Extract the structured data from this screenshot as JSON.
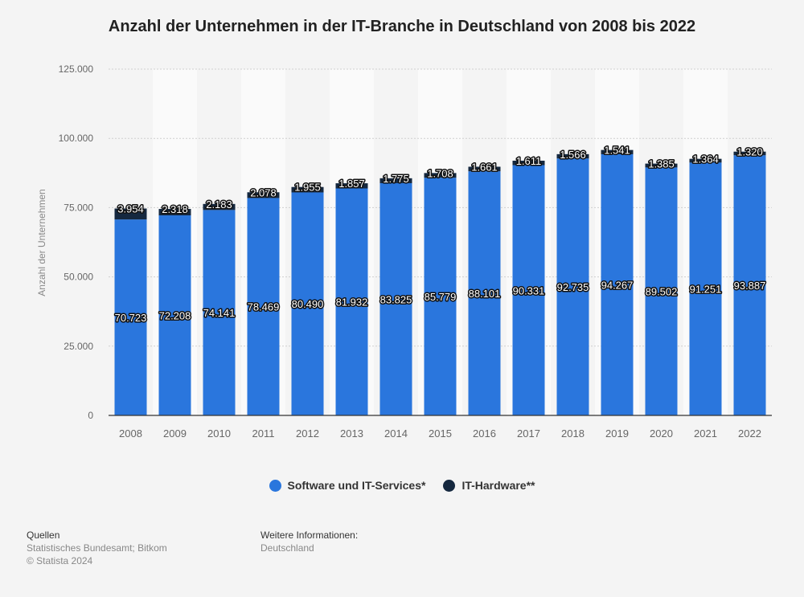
{
  "chart_data": {
    "type": "bar",
    "stacked": true,
    "title": "Anzahl der Unternehmen in der IT-Branche in Deutschland von 2008 bis 2022",
    "xlabel": "",
    "ylabel": "Anzahl der Unternehmen",
    "ylim": [
      0,
      125000
    ],
    "yticks": [
      "0",
      "25.000",
      "50.000",
      "75.000",
      "100.000",
      "125.000"
    ],
    "ytick_values": [
      0,
      25000,
      50000,
      75000,
      100000,
      125000
    ],
    "grid": true,
    "legend_position": "bottom",
    "categories": [
      "2008",
      "2009",
      "2010",
      "2011",
      "2012",
      "2013",
      "2014",
      "2015",
      "2016",
      "2017",
      "2018",
      "2019",
      "2020",
      "2021",
      "2022"
    ],
    "series": [
      {
        "name": "Software und IT-Services*",
        "color": "#2a76dd",
        "values": [
          70723,
          72208,
          74141,
          78469,
          80490,
          81932,
          83825,
          85779,
          88101,
          90331,
          92735,
          94267,
          89502,
          91251,
          93887
        ],
        "labels": [
          "70.723",
          "72.208",
          "74.141",
          "78.469",
          "80.490",
          "81.932",
          "83.825",
          "85.779",
          "88.101",
          "90.331",
          "92.735",
          "94.267",
          "89.502",
          "91.251",
          "93.887"
        ]
      },
      {
        "name": "IT-Hardware**",
        "color": "#15283f",
        "values": [
          3954,
          2318,
          2183,
          2078,
          1955,
          1857,
          1775,
          1708,
          1661,
          1611,
          1566,
          1541,
          1385,
          1364,
          1320
        ],
        "labels": [
          "3.954",
          "2.318",
          "2.183",
          "2.078",
          "1.955",
          "1.857",
          "1.775",
          "1.708",
          "1.661",
          "1.611",
          "1.566",
          "1.541",
          "1.385",
          "1.364",
          "1.320"
        ]
      }
    ]
  },
  "footer": {
    "sources_heading": "Quellen",
    "sources_text": "Statistisches Bundesamt; Bitkom",
    "copyright": "© Statista 2024",
    "info_heading": "Weitere Informationen:",
    "info_text": "Deutschland"
  }
}
